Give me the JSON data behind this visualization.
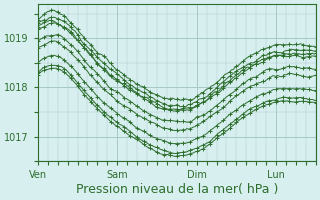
{
  "background_color": "#d8eff0",
  "grid_color": "#a8c8c8",
  "line_color": "#2d6e2d",
  "xlabel": "Pression niveau de la mer( hPa )",
  "xlabel_fontsize": 9,
  "yticks": [
    1017,
    1018,
    1019
  ],
  "xtick_labels": [
    "Ven",
    "Sam",
    "Dim",
    "Lun"
  ],
  "xtick_positions": [
    0,
    48,
    96,
    144
  ],
  "xlim": [
    0,
    168
  ],
  "ylim": [
    1016.5,
    1019.7
  ],
  "figsize": [
    3.2,
    2.0
  ],
  "dpi": 100
}
